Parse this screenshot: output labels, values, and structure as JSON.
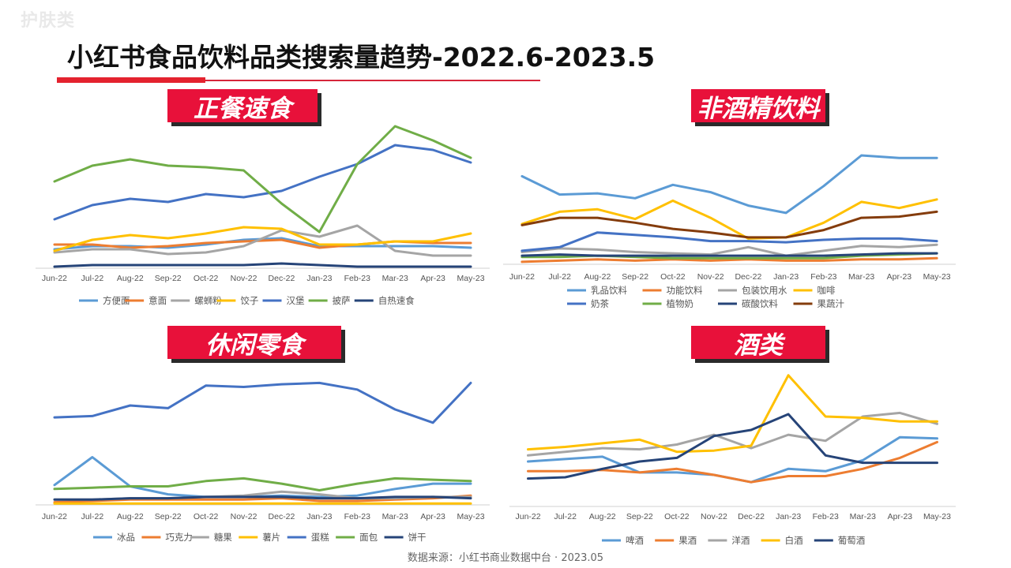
{
  "watermark": "护肤类",
  "title": "小红书食品饮料品类搜索量趋势-2022.6-2023.5",
  "footer": "数据来源：小红书商业数据中台 · 2023.05",
  "months": [
    "Jun-22",
    "Jul-22",
    "Aug-22",
    "Sep-22",
    "Oct-22",
    "Nov-22",
    "Dec-22",
    "Jan-23",
    "Feb-23",
    "Mar-23",
    "Apr-23",
    "May-23"
  ],
  "colors": {
    "accent_red": "#e8113a",
    "title_rule": "#d6263a"
  },
  "chart_data": [
    {
      "type": "line",
      "title": "正餐速食",
      "categories": [
        "Jun-22",
        "Jul-22",
        "Aug-22",
        "Sep-22",
        "Oct-22",
        "Nov-22",
        "Dec-22",
        "Jan-23",
        "Feb-23",
        "Mar-23",
        "Apr-23",
        "May-23"
      ],
      "ylim": [
        0,
        100
      ],
      "grid": false,
      "legend": "bottom",
      "series": [
        {
          "name": "方便面",
          "color": "#5b9bd5",
          "values": [
            12,
            14,
            14,
            13,
            15,
            18,
            19,
            14,
            14,
            14,
            14,
            13
          ]
        },
        {
          "name": "意面",
          "color": "#ed7d31",
          "values": [
            15,
            15,
            13,
            14,
            16,
            17,
            18,
            13,
            15,
            17,
            16,
            16
          ]
        },
        {
          "name": "螺蛳粉",
          "color": "#a5a5a5",
          "values": [
            10,
            12,
            12,
            9,
            10,
            14,
            24,
            20,
            27,
            11,
            8,
            8
          ]
        },
        {
          "name": "饺子",
          "color": "#ffc000",
          "values": [
            11,
            18,
            21,
            19,
            22,
            26,
            25,
            15,
            15,
            17,
            17,
            22
          ]
        },
        {
          "name": "汉堡",
          "color": "#4472c4",
          "values": [
            31,
            40,
            44,
            42,
            47,
            45,
            49,
            58,
            66,
            78,
            75,
            67
          ]
        },
        {
          "name": "披萨",
          "color": "#70ad47",
          "values": [
            55,
            65,
            69,
            65,
            64,
            62,
            41,
            23,
            66,
            90,
            81,
            70
          ]
        },
        {
          "name": "自热速食",
          "color": "#264478",
          "values": [
            1,
            2,
            2,
            2,
            2,
            2,
            3,
            2,
            1,
            1,
            1,
            1
          ]
        }
      ]
    },
    {
      "type": "line",
      "title": "非酒精饮料",
      "categories": [
        "Jun-22",
        "Jul-22",
        "Aug-22",
        "Sep-22",
        "Oct-22",
        "Nov-22",
        "Dec-22",
        "Jan-23",
        "Feb-23",
        "Mar-23",
        "Apr-23",
        "May-23"
      ],
      "ylim": [
        0,
        100
      ],
      "grid": false,
      "legend": "bottom",
      "series": [
        {
          "name": "乳品饮料",
          "color": "#5b9bd5",
          "values": [
            72,
            57,
            58,
            54,
            65,
            59,
            48,
            42,
            64,
            89,
            87,
            87
          ]
        },
        {
          "name": "功能饮料",
          "color": "#ed7d31",
          "values": [
            2,
            3,
            4,
            3,
            4,
            3,
            4,
            3,
            3,
            4,
            4,
            5
          ]
        },
        {
          "name": "包装饮用水",
          "color": "#a5a5a5",
          "values": [
            10,
            13,
            12,
            10,
            9,
            8,
            14,
            7,
            11,
            15,
            14,
            16
          ]
        },
        {
          "name": "咖啡",
          "color": "#ffc000",
          "values": [
            33,
            43,
            45,
            37,
            52,
            38,
            21,
            22,
            34,
            51,
            46,
            53
          ]
        },
        {
          "name": "奶茶",
          "color": "#4472c4",
          "values": [
            11,
            14,
            26,
            24,
            22,
            19,
            19,
            18,
            20,
            21,
            21,
            19
          ]
        },
        {
          "name": "植物奶",
          "color": "#70ad47",
          "values": [
            6,
            6,
            7,
            6,
            5,
            5,
            5,
            5,
            5,
            7,
            8,
            9
          ]
        },
        {
          "name": "碳酸饮料",
          "color": "#264478",
          "values": [
            7,
            8,
            7,
            7,
            7,
            7,
            7,
            7,
            7,
            8,
            9,
            9
          ]
        },
        {
          "name": "果蔬汁",
          "color": "#843c0c",
          "values": [
            32,
            38,
            38,
            34,
            29,
            26,
            22,
            22,
            28,
            38,
            39,
            43
          ]
        }
      ]
    },
    {
      "type": "line",
      "title": "休闲零食",
      "categories": [
        "Jun-22",
        "Jul-22",
        "Aug-22",
        "Sep-22",
        "Oct-22",
        "Nov-22",
        "Dec-22",
        "Jan-23",
        "Feb-23",
        "Mar-23",
        "Apr-23",
        "May-23"
      ],
      "ylim": [
        0,
        100
      ],
      "grid": false,
      "legend": "bottom",
      "series": [
        {
          "name": "冰品",
          "color": "#5b9bd5",
          "values": [
            15,
            36,
            14,
            8,
            6,
            6,
            7,
            6,
            7,
            12,
            16,
            16
          ]
        },
        {
          "name": "巧克力",
          "color": "#ed7d31",
          "values": [
            2,
            3,
            4,
            4,
            4,
            4,
            5,
            3,
            3,
            4,
            5,
            7
          ]
        },
        {
          "name": "糖果",
          "color": "#a5a5a5",
          "values": [
            4,
            4,
            5,
            5,
            6,
            7,
            10,
            8,
            5,
            5,
            6,
            6
          ]
        },
        {
          "name": "薯片",
          "color": "#ffc000",
          "values": [
            1,
            1,
            1,
            1,
            1,
            1,
            1,
            1,
            1,
            1,
            1,
            1
          ]
        },
        {
          "name": "蛋糕",
          "color": "#4472c4",
          "values": [
            66,
            67,
            75,
            73,
            90,
            89,
            91,
            92,
            87,
            72,
            62,
            92
          ]
        },
        {
          "name": "面包",
          "color": "#70ad47",
          "values": [
            12,
            13,
            14,
            14,
            18,
            20,
            16,
            11,
            16,
            20,
            19,
            18
          ]
        },
        {
          "name": "饼干",
          "color": "#264478",
          "values": [
            4,
            4,
            5,
            5,
            6,
            6,
            6,
            5,
            5,
            6,
            6,
            5
          ]
        }
      ]
    },
    {
      "type": "line",
      "title": "酒类",
      "categories": [
        "Jun-22",
        "Jul-22",
        "Aug-22",
        "Sep-22",
        "Oct-22",
        "Nov-22",
        "Dec-22",
        "Jan-23",
        "Feb-23",
        "Mar-23",
        "Apr-23",
        "May-23"
      ],
      "ylim": [
        0,
        100
      ],
      "grid": false,
      "legend": "bottom",
      "series": [
        {
          "name": "啤酒",
          "color": "#5b9bd5",
          "values": [
            37,
            39,
            41,
            28,
            28,
            26,
            20,
            31,
            29,
            38,
            57,
            56
          ]
        },
        {
          "name": "果酒",
          "color": "#ed7d31",
          "values": [
            29,
            29,
            30,
            28,
            31,
            26,
            20,
            25,
            25,
            31,
            40,
            53
          ]
        },
        {
          "name": "洋酒",
          "color": "#a5a5a5",
          "values": [
            42,
            45,
            48,
            47,
            51,
            59,
            48,
            59,
            54,
            74,
            77,
            68
          ]
        },
        {
          "name": "白酒",
          "color": "#ffc000",
          "values": [
            47,
            49,
            52,
            55,
            45,
            46,
            50,
            108,
            74,
            73,
            70,
            70
          ]
        },
        {
          "name": "葡萄酒",
          "color": "#264478",
          "values": [
            23,
            24,
            31,
            37,
            40,
            58,
            63,
            76,
            42,
            36,
            36,
            36
          ]
        }
      ]
    }
  ]
}
